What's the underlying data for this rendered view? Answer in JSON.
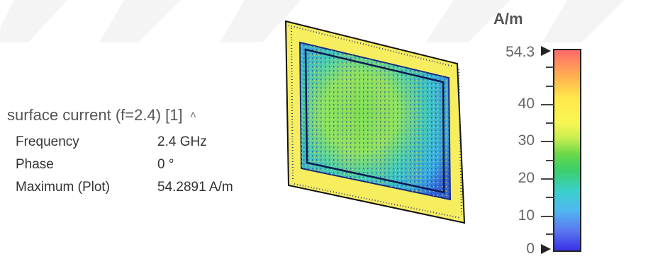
{
  "panel": {
    "title": "surface current (f=2.4) [1]",
    "collapse_icon": "chevron-up-icon",
    "rows": [
      {
        "label": "Frequency",
        "value": "2.4 GHz"
      },
      {
        "label": "Phase",
        "value": "0 °"
      },
      {
        "label": "Maximum (Plot)",
        "value": "54.2891 A/m"
      }
    ]
  },
  "colorbar": {
    "unit": "A/m",
    "max_label": "54.3",
    "min_label": "0",
    "tick_labels": [
      "40",
      "30",
      "20",
      "10"
    ],
    "range": [
      0,
      54.3
    ],
    "colors": [
      "#ff6a6a",
      "#ffe84a",
      "#6ad84a",
      "#3ad0c8",
      "#5a78f0",
      "#3a30e8"
    ]
  }
}
